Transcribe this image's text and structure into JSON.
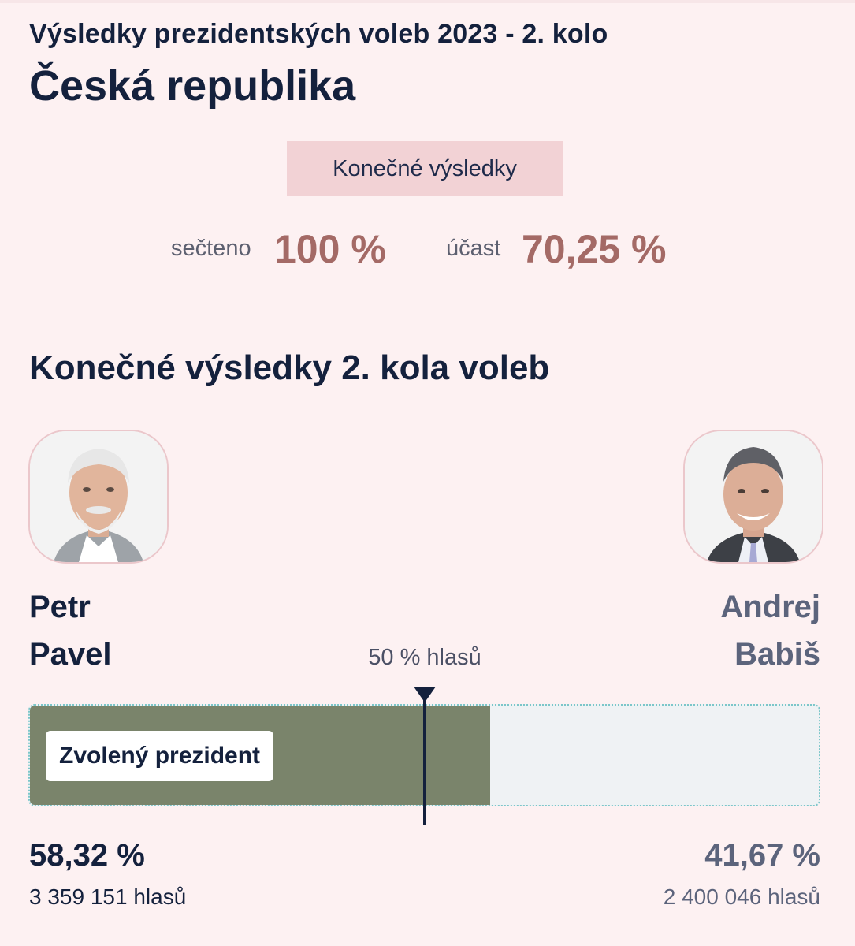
{
  "header": {
    "supertitle": "Výsledky prezidentských voleb 2023 - 2. kolo",
    "title": "Česká republika"
  },
  "status_badge": "Konečné výsledky",
  "stats": {
    "counted_label": "sečteno",
    "counted_value": "100 %",
    "turnout_label": "účast",
    "turnout_value": "70,25 %"
  },
  "section_title": "Konečné výsledky 2. kola voleb",
  "majority_label": "50 % hlasů",
  "elected_label": "Zvolený prezident",
  "candidates": [
    {
      "first_name": "Petr",
      "last_name": "Pavel",
      "percent": "58,32 %",
      "votes": "3 359 151 hlasů",
      "share": 0.5832,
      "color": "#7a846b",
      "name_color": "#14213d"
    },
    {
      "first_name": "Andrej",
      "last_name": "Babiš",
      "percent": "41,67 %",
      "votes": "2 400 046 hlasů",
      "share": 0.4167,
      "color": "#eff2f4",
      "name_color": "#5c647c"
    }
  ],
  "colors": {
    "background": "#fdf1f2",
    "badge": "#f2d2d5",
    "accent_value": "#a46a66",
    "navy": "#14213d"
  }
}
